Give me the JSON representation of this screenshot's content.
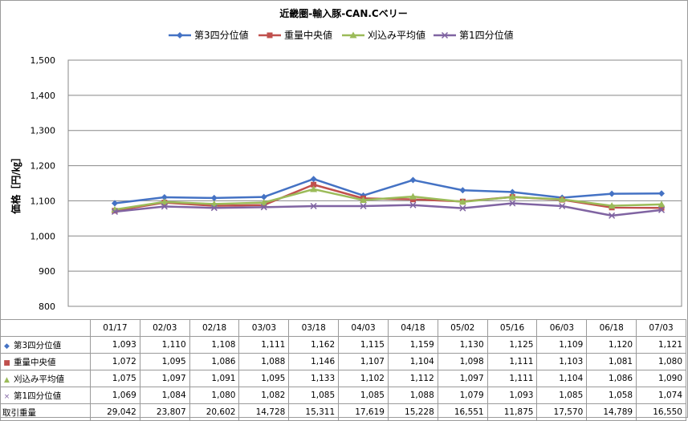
{
  "chart_data": {
    "type": "line",
    "title": "近畿圏-輸入豚-CAN.Cベリー",
    "ylabel": "価格［円/㎏］",
    "xlabel": "",
    "ylim": [
      800,
      1500
    ],
    "yticks": [
      800,
      900,
      1000,
      1100,
      1200,
      1300,
      1400,
      1500
    ],
    "ytick_labels": [
      "800",
      "900",
      "1,000",
      "1,100",
      "1,200",
      "1,300",
      "1,400",
      "1,500"
    ],
    "grid": true,
    "legend_position": "top",
    "categories": [
      "01/17",
      "02/03",
      "02/18",
      "03/03",
      "03/18",
      "04/03",
      "04/18",
      "05/02",
      "05/16",
      "06/03",
      "06/18",
      "07/03"
    ],
    "series": [
      {
        "name": "第3四分位値",
        "color": "#4472C4",
        "marker": "diamond",
        "values": [
          1093,
          1110,
          1108,
          1111,
          1162,
          1115,
          1159,
          1130,
          1125,
          1109,
          1120,
          1121
        ],
        "labels": [
          "1,093",
          "1,110",
          "1,108",
          "1,111",
          "1,162",
          "1,115",
          "1,159",
          "1,130",
          "1,125",
          "1,109",
          "1,120",
          "1,121"
        ]
      },
      {
        "name": "重量中央値",
        "color": "#C0504D",
        "marker": "square",
        "values": [
          1072,
          1095,
          1086,
          1088,
          1146,
          1107,
          1104,
          1098,
          1111,
          1103,
          1081,
          1080
        ],
        "labels": [
          "1,072",
          "1,095",
          "1,086",
          "1,088",
          "1,146",
          "1,107",
          "1,104",
          "1,098",
          "1,111",
          "1,103",
          "1,081",
          "1,080"
        ]
      },
      {
        "name": "刈込み平均値",
        "color": "#9BBB59",
        "marker": "triangle",
        "values": [
          1075,
          1097,
          1091,
          1095,
          1133,
          1102,
          1112,
          1097,
          1111,
          1104,
          1086,
          1090
        ],
        "labels": [
          "1,075",
          "1,097",
          "1,091",
          "1,095",
          "1,133",
          "1,102",
          "1,112",
          "1,097",
          "1,111",
          "1,104",
          "1,086",
          "1,090"
        ]
      },
      {
        "name": "第1四分位値",
        "color": "#8064A2",
        "marker": "x",
        "values": [
          1069,
          1084,
          1080,
          1082,
          1085,
          1085,
          1088,
          1079,
          1093,
          1085,
          1058,
          1074
        ],
        "labels": [
          "1,069",
          "1,084",
          "1,080",
          "1,082",
          "1,085",
          "1,085",
          "1,088",
          "1,079",
          "1,093",
          "1,085",
          "1,058",
          "1,074"
        ]
      }
    ],
    "extra_rows": [
      {
        "name": "取引重量",
        "labels": [
          "29,042",
          "23,807",
          "20,602",
          "14,728",
          "15,311",
          "17,619",
          "15,228",
          "16,551",
          "11,875",
          "17,570",
          "14,789",
          "16,550"
        ]
      }
    ]
  }
}
